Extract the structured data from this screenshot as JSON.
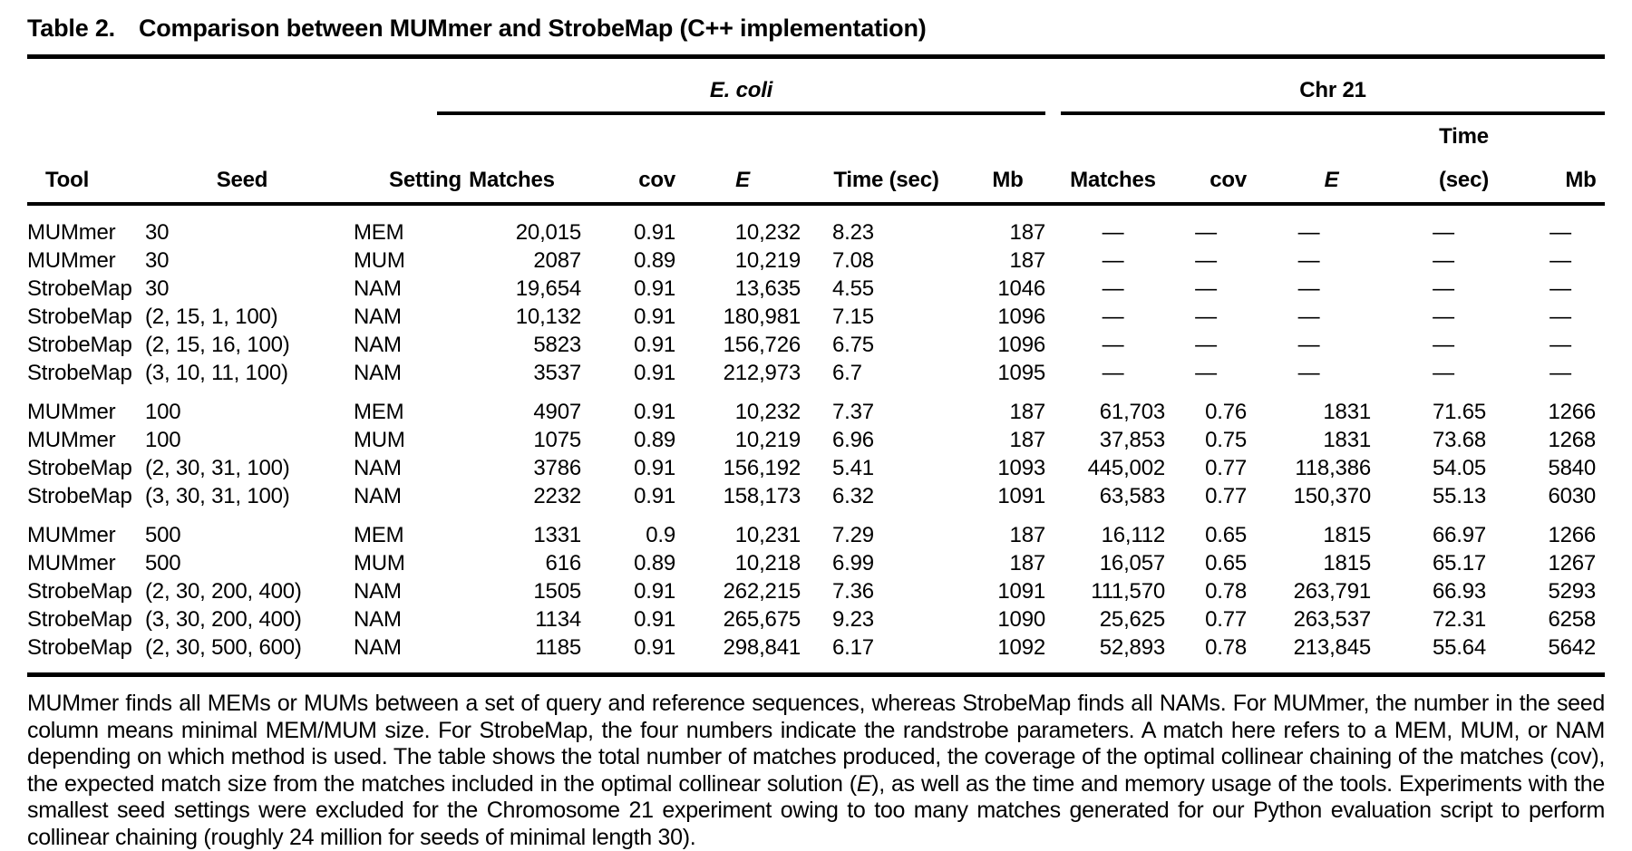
{
  "title": {
    "label": "Table 2.",
    "caption": "Comparison between MUMmer and StrobeMap (C++ implementation)"
  },
  "table": {
    "col_headers": {
      "tool": "Tool",
      "seed": "Seed",
      "setting": "Setting"
    },
    "groups": [
      {
        "label": "E. coli",
        "metrics": [
          "Matches",
          "cov",
          "E",
          "Time (sec)",
          "Mb"
        ]
      },
      {
        "label": "Chr 21",
        "metrics": [
          "Matches",
          "cov",
          "E",
          "Time (sec)",
          "Mb"
        ]
      }
    ],
    "rows": [
      {
        "group": 0,
        "tool": "MUMmer",
        "seed": "30",
        "setting": "MEM",
        "ecoli": [
          "20,015",
          "0.91",
          "10,232",
          "8.23",
          "187"
        ],
        "chr21": [
          "—",
          "—",
          "—",
          "—",
          "—"
        ]
      },
      {
        "group": 0,
        "tool": "MUMmer",
        "seed": "30",
        "setting": "MUM",
        "ecoli": [
          "2087",
          "0.89",
          "10,219",
          "7.08",
          "187"
        ],
        "chr21": [
          "—",
          "—",
          "—",
          "—",
          "—"
        ]
      },
      {
        "group": 0,
        "tool": "StrobeMap",
        "seed": "30",
        "setting": "NAM",
        "ecoli": [
          "19,654",
          "0.91",
          "13,635",
          "4.55",
          "1046"
        ],
        "chr21": [
          "—",
          "—",
          "—",
          "—",
          "—"
        ]
      },
      {
        "group": 0,
        "tool": "StrobeMap",
        "seed": "(2, 15, 1, 100)",
        "setting": "NAM",
        "ecoli": [
          "10,132",
          "0.91",
          "180,981",
          "7.15",
          "1096"
        ],
        "chr21": [
          "—",
          "—",
          "—",
          "—",
          "—"
        ]
      },
      {
        "group": 0,
        "tool": "StrobeMap",
        "seed": "(2, 15, 16, 100)",
        "setting": "NAM",
        "ecoli": [
          "5823",
          "0.91",
          "156,726",
          "6.75",
          "1096"
        ],
        "chr21": [
          "—",
          "—",
          "—",
          "—",
          "—"
        ]
      },
      {
        "group": 0,
        "tool": "StrobeMap",
        "seed": "(3, 10, 11, 100)",
        "setting": "NAM",
        "ecoli": [
          "3537",
          "0.91",
          "212,973",
          "6.7",
          "1095"
        ],
        "chr21": [
          "—",
          "—",
          "—",
          "—",
          "—"
        ]
      },
      {
        "group": 1,
        "tool": "MUMmer",
        "seed": "100",
        "setting": "MEM",
        "ecoli": [
          "4907",
          "0.91",
          "10,232",
          "7.37",
          "187"
        ],
        "chr21": [
          "61,703",
          "0.76",
          "1831",
          "71.65",
          "1266"
        ]
      },
      {
        "group": 1,
        "tool": "MUMmer",
        "seed": "100",
        "setting": "MUM",
        "ecoli": [
          "1075",
          "0.89",
          "10,219",
          "6.96",
          "187"
        ],
        "chr21": [
          "37,853",
          "0.75",
          "1831",
          "73.68",
          "1268"
        ]
      },
      {
        "group": 1,
        "tool": "StrobeMap",
        "seed": "(2, 30, 31, 100)",
        "setting": "NAM",
        "ecoli": [
          "3786",
          "0.91",
          "156,192",
          "5.41",
          "1093"
        ],
        "chr21": [
          "445,002",
          "0.77",
          "118,386",
          "54.05",
          "5840"
        ]
      },
      {
        "group": 1,
        "tool": "StrobeMap",
        "seed": "(3, 30, 31, 100)",
        "setting": "NAM",
        "ecoli": [
          "2232",
          "0.91",
          "158,173",
          "6.32",
          "1091"
        ],
        "chr21": [
          "63,583",
          "0.77",
          "150,370",
          "55.13",
          "6030"
        ]
      },
      {
        "group": 2,
        "tool": "MUMmer",
        "seed": "500",
        "setting": "MEM",
        "ecoli": [
          "1331",
          "0.9",
          "10,231",
          "7.29",
          "187"
        ],
        "chr21": [
          "16,112",
          "0.65",
          "1815",
          "66.97",
          "1266"
        ]
      },
      {
        "group": 2,
        "tool": "MUMmer",
        "seed": "500",
        "setting": "MUM",
        "ecoli": [
          "616",
          "0.89",
          "10,218",
          "6.99",
          "187"
        ],
        "chr21": [
          "16,057",
          "0.65",
          "1815",
          "65.17",
          "1267"
        ]
      },
      {
        "group": 2,
        "tool": "StrobeMap",
        "seed": "(2, 30, 200, 400)",
        "setting": "NAM",
        "ecoli": [
          "1505",
          "0.91",
          "262,215",
          "7.36",
          "1091"
        ],
        "chr21": [
          "111,570",
          "0.78",
          "263,791",
          "66.93",
          "5293"
        ]
      },
      {
        "group": 2,
        "tool": "StrobeMap",
        "seed": "(3, 30, 200, 400)",
        "setting": "NAM",
        "ecoli": [
          "1134",
          "0.91",
          "265,675",
          "9.23",
          "1090"
        ],
        "chr21": [
          "25,625",
          "0.77",
          "263,537",
          "72.31",
          "6258"
        ]
      },
      {
        "group": 2,
        "tool": "StrobeMap",
        "seed": "(2, 30, 500, 600)",
        "setting": "NAM",
        "ecoli": [
          "1185",
          "0.91",
          "298,841",
          "6.17",
          "1092"
        ],
        "chr21": [
          "52,893",
          "0.78",
          "213,845",
          "55.64",
          "5642"
        ]
      }
    ]
  },
  "footnote": {
    "part1": "MUMmer finds all MEMs or MUMs between a set of query and reference sequences, whereas StrobeMap finds all NAMs. For MUMmer, the number in the seed column means minimal MEM/MUM size. For StrobeMap, the four numbers indicate the randstrobe parameters. A match here refers to a MEM, MUM, or NAM depending on which method is used. The table shows the total number of matches produced, the coverage of the optimal collinear chaining of the matches (cov), the expected match size from the matches included in the optimal collinear solution (",
    "italic_e": "E",
    "part2": "), as well as the time and memory usage of the tools. Experiments with the smallest seed settings were excluded for the Chromosome 21 experiment owing to too many matches generated for our Python evaluation script to perform collinear chaining (roughly 24 million for seeds of minimal length 30)."
  }
}
